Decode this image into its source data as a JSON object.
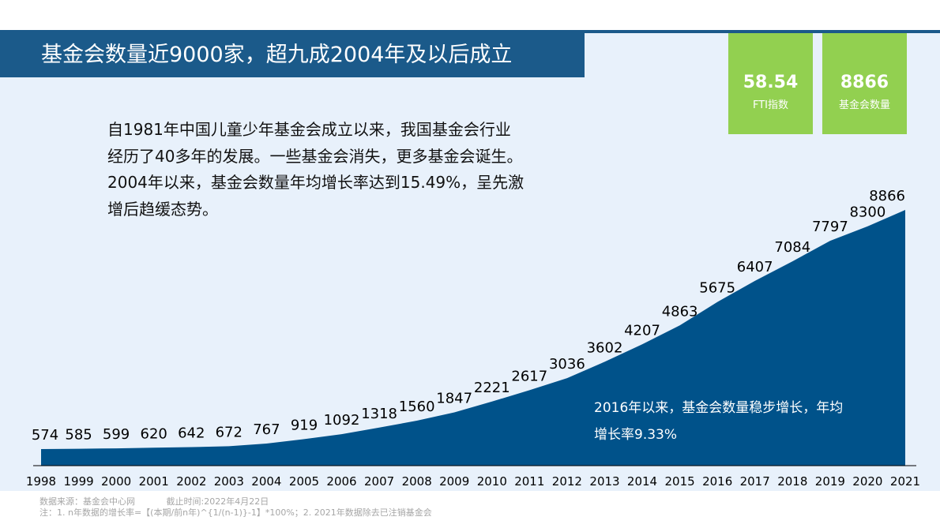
{
  "title": "基金会数量近9000家，超九成2004年及以后成立",
  "kpis": [
    {
      "value": "58.54",
      "label": "FTI指数"
    },
    {
      "value": "8866",
      "label": "基金会数量"
    }
  ],
  "intro_lines": [
    "自1981年中国儿童少年基金会成立以来，我国基金会行业",
    "经历了40多年的发展。一些基金会消失，更多基金会诞生。",
    "2004年以来，基金会数量年均增长率达到15.49%，呈先激",
    "增后趋缓态势。"
  ],
  "annotation_lines": [
    "2016年以来，基金会数量稳步增长，年均",
    "增长率9.33%"
  ],
  "footer": {
    "source": "数据来源：基金会中心网",
    "cutoff": "截止时间:2022年4月22日",
    "note": "注：1. n年数据的增长率=【(本期/前n年)^{1/(n-1)}-1】*100%；2. 2021年数据除去已注销基金会"
  },
  "colors": {
    "title_bar": "#1b5a8a",
    "area": "#00528a",
    "panel": "#e8f1fb",
    "kpi": "#92d050"
  },
  "chart_data": {
    "type": "area",
    "title": "",
    "xlabel": "",
    "ylabel": "",
    "categories": [
      "1998",
      "1999",
      "2000",
      "2001",
      "2002",
      "2003",
      "2004",
      "2005",
      "2006",
      "2007",
      "2008",
      "2009",
      "2010",
      "2011",
      "2012",
      "2013",
      "2014",
      "2015",
      "2016",
      "2017",
      "2018",
      "2019",
      "2020",
      "2021"
    ],
    "values": [
      574,
      585,
      599,
      620,
      642,
      672,
      767,
      919,
      1092,
      1318,
      1560,
      1847,
      2221,
      2617,
      3036,
      3602,
      4207,
      4863,
      5675,
      6407,
      7084,
      7797,
      8300,
      8866
    ],
    "data_labels": [
      "574",
      "585",
      "599",
      "620",
      "642",
      "672",
      "767",
      "919",
      "1092",
      "1318",
      "1560",
      "1847",
      "2221",
      "2617",
      "3036",
      "3602",
      "4207",
      "4863",
      "5675",
      "6407",
      "7084",
      "7797",
      "8300",
      "8866"
    ],
    "ylim": [
      0,
      9000
    ],
    "grid": false,
    "legend": "none"
  }
}
